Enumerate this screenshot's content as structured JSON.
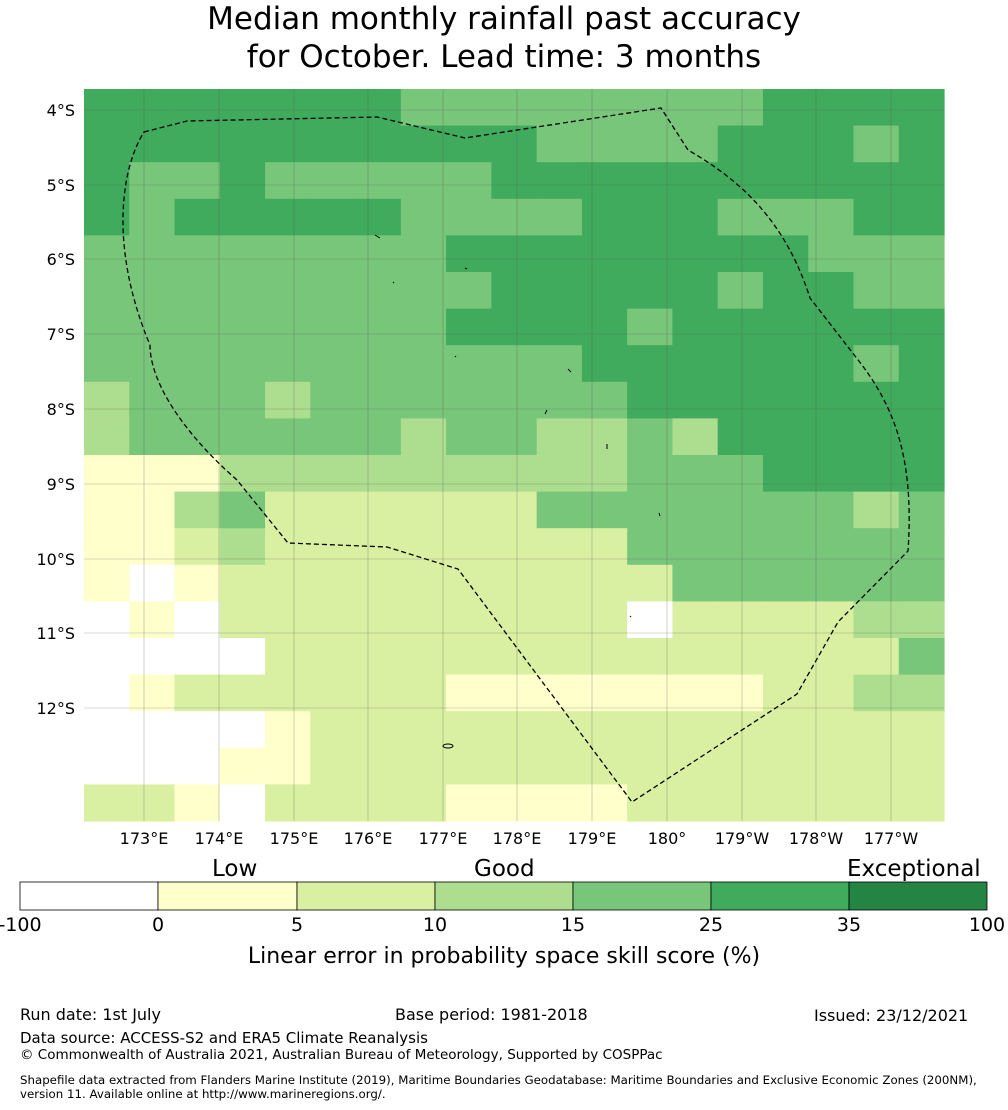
{
  "title": {
    "line1": "Median monthly rainfall past accuracy",
    "line2": "for October. Lead time: 3 months"
  },
  "map": {
    "lat_labels": [
      "4°S",
      "5°S",
      "6°S",
      "7°S",
      "8°S",
      "9°S",
      "10°S",
      "11°S",
      "12°S"
    ],
    "lon_labels": [
      "173°E",
      "174°E",
      "175°E",
      "176°E",
      "177°E",
      "178°E",
      "179°E",
      "180°",
      "179°W",
      "178°W",
      "177°W"
    ],
    "grid_rows": [
      "5555555444444445555",
      "5555555555444455545",
      "5445444445555555555",
      "5455555444455544455",
      "4444444455555555444",
      "4444444445555545544",
      "4444444455554555555",
      "4444444444455555545",
      "3444344444445555555",
      "3444444344334355555",
      "1113333333334445555",
      "1134222222444444434",
      "1123222222224444444",
      "1012222222222444444",
      "0102222222220222233",
      "0000222222222222224",
      "0122222211111112233",
      "0000122222222222222",
      "0001122222222222222",
      "2210222211112222222"
    ],
    "colors": [
      "#ffffff",
      "#ffffcc",
      "#d9f0a3",
      "#addd8e",
      "#78c679",
      "#41ab5d",
      "#238443"
    ]
  },
  "colorbar": {
    "categories": [
      "Low",
      "Good",
      "Exceptional"
    ],
    "ticks": [
      "-100",
      "0",
      "5",
      "10",
      "15",
      "25",
      "35",
      "100"
    ],
    "label": "Linear error in probability space skill score (%)"
  },
  "footer": {
    "run_date": "Run date: 1st July",
    "base_period": "Base period: 1981-2018",
    "issued": "Issued: 23/12/2021",
    "data_source": "Data source: ACCESS-S2 and ERA5 Climate Reanalysis",
    "copyright": "© Commonwealth of Australia 2021, Australian Bureau of Meteorology, Supported by COSPPac",
    "shapefile_line1": "Shapefile data extracted from Flanders Marine Institute (2019), Maritime Boundaries Geodatabase: Maritime Boundaries and Exclusive Economic Zones (200NM),",
    "shapefile_line2": "version 11. Available online at http://www.marineregions.org/."
  }
}
